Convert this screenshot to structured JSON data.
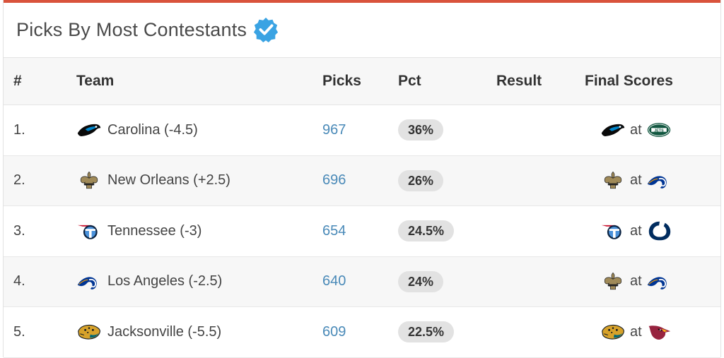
{
  "title": "Picks By Most Contestants",
  "columns": {
    "rank": "#",
    "team": "Team",
    "picks": "Picks",
    "pct": "Pct",
    "result": "Result",
    "final": "Final Scores"
  },
  "at_label": "at",
  "rows": [
    {
      "rank": "1.",
      "team": "Carolina (-4.5)",
      "picks": "967",
      "pct": "36%",
      "result": "",
      "team_icon": "panthers-logo-icon",
      "away_icon": "panthers-logo-icon",
      "home_icon": "jets-logo-icon"
    },
    {
      "rank": "2.",
      "team": "New Orleans (+2.5)",
      "picks": "696",
      "pct": "26%",
      "result": "",
      "team_icon": "saints-logo-icon",
      "away_icon": "saints-logo-icon",
      "home_icon": "rams-logo-icon"
    },
    {
      "rank": "3.",
      "team": "Tennessee (-3)",
      "picks": "654",
      "pct": "24.5%",
      "result": "",
      "team_icon": "titans-logo-icon",
      "away_icon": "titans-logo-icon",
      "home_icon": "colts-logo-icon"
    },
    {
      "rank": "4.",
      "team": "Los Angeles (-2.5)",
      "picks": "640",
      "pct": "24%",
      "result": "",
      "team_icon": "rams-logo-icon",
      "away_icon": "saints-logo-icon",
      "home_icon": "rams-logo-icon"
    },
    {
      "rank": "5.",
      "team": "Jacksonville (-5.5)",
      "picks": "609",
      "pct": "22.5%",
      "result": "",
      "team_icon": "jaguars-logo-icon",
      "away_icon": "jaguars-logo-icon",
      "home_icon": "cardinals-logo-icon"
    }
  ],
  "colors": {
    "accent": "#d9533c",
    "link": "#4a8ab8",
    "verified": "#3aa3e3",
    "badge": "#e2e2e2"
  }
}
